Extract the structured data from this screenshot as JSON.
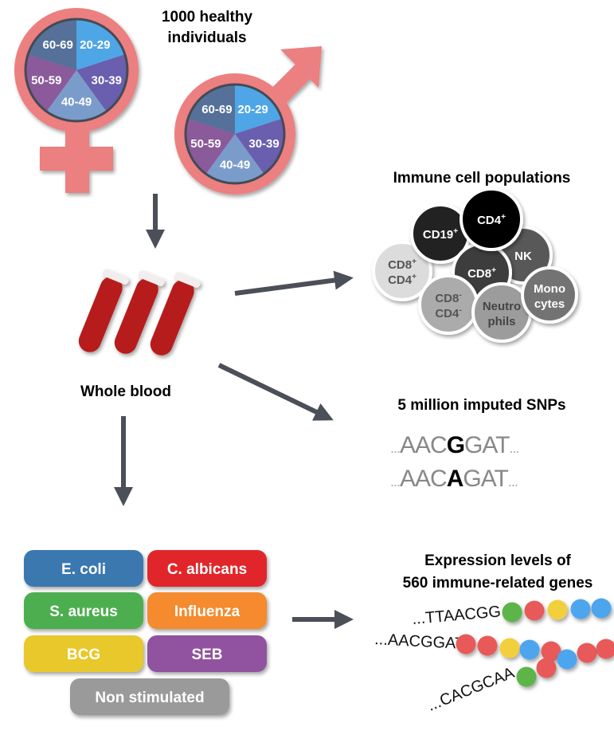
{
  "title": {
    "line1": "1000 healthy",
    "line2": "individuals"
  },
  "age_groups": [
    "20-29",
    "30-39",
    "40-49",
    "50-59",
    "60-69"
  ],
  "age_colors": [
    "#4FA6E6",
    "#6A5EAE",
    "#7A9CCB",
    "#8A5A9A",
    "#557199"
  ],
  "symbol_color": "#EC7F7F",
  "sample_label": "Whole blood",
  "immune": {
    "title": "Immune cell populations",
    "cells": [
      {
        "line1": "CD19",
        "sup1": "+",
        "color": "#222222",
        "text": "#ffffff"
      },
      {
        "line1": "CD4",
        "sup1": "+",
        "color": "#000000",
        "text": "#ffffff"
      },
      {
        "line1": "NK",
        "color": "#585858",
        "text": "#ffffff"
      },
      {
        "line1": "CD8",
        "sup1": "+",
        "line2": "CD4",
        "sup2": "+",
        "color": "#dcdcdc",
        "text": "#555555"
      },
      {
        "line1": "CD8",
        "sup1": "+",
        "color": "#3c3c3c",
        "text": "#ffffff"
      },
      {
        "line1": "CD8",
        "sup1": "-",
        "line2": "CD4",
        "sup2": "-",
        "color": "#ababab",
        "text": "#555555"
      },
      {
        "line1": "Neutro",
        "line2": "phils",
        "color": "#9c9c9c",
        "text": "#444444"
      },
      {
        "line1": "Mono",
        "line2": "cytes",
        "color": "#737373",
        "text": "#ffffff"
      }
    ]
  },
  "snps": {
    "title": "5 million imputed SNPs",
    "seq1": {
      "pre": "AAC",
      "snp": "G",
      "post": "GAT"
    },
    "seq2": {
      "pre": "AAC",
      "snp": "A",
      "post": "GAT"
    },
    "ellipsis": "..."
  },
  "stimuli": [
    {
      "label": "E. coli",
      "color": "#3B78B0"
    },
    {
      "label": "C. albicans",
      "color": "#E0282B"
    },
    {
      "label": "S. aureus",
      "color": "#4DAE4F"
    },
    {
      "label": "Influenza",
      "color": "#F58A2E"
    },
    {
      "label": "BCG",
      "color": "#E8C82C"
    },
    {
      "label": "SEB",
      "color": "#9152A0"
    },
    {
      "label": "Non stimulated",
      "color": "#9A9A9A"
    }
  ],
  "expression": {
    "title1": "Expression levels of",
    "title2": "560 immune-related genes",
    "seqs": [
      "...TTAACGG",
      "...AACGGAT",
      "...CACGCAA"
    ]
  }
}
